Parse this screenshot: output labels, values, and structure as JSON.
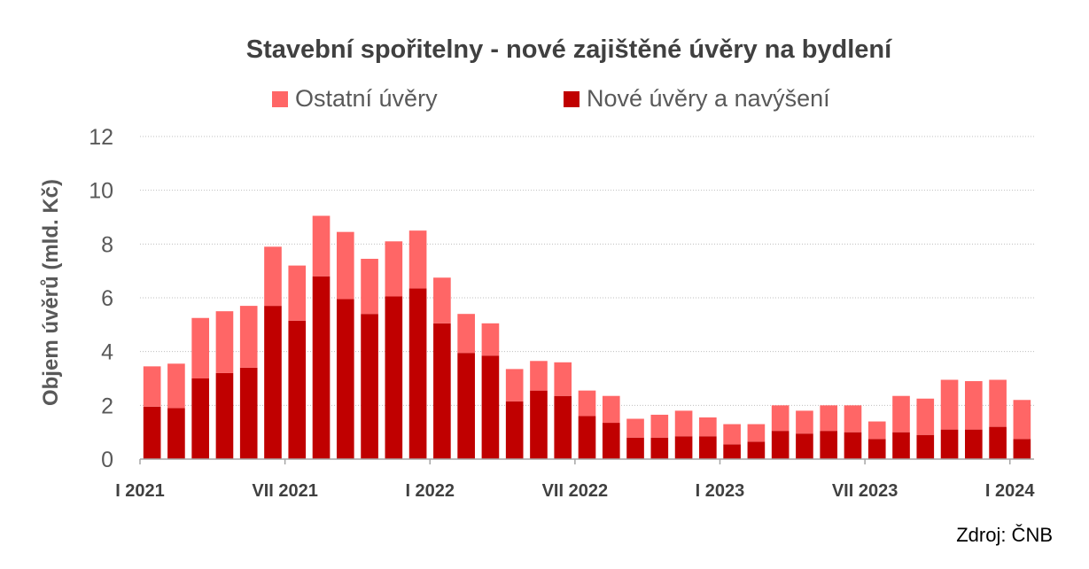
{
  "chart_data": {
    "type": "bar",
    "stacked": true,
    "title": "Stavební spořitelny - nové zajištěné úvěry na bydlení",
    "ylabel": "Objem úvěrů (mld. Kč)",
    "xlabel": "",
    "ylim": [
      0,
      12
    ],
    "yticks": [
      "0",
      "2",
      "4",
      "6",
      "8",
      "10",
      "12"
    ],
    "grid": true,
    "legend_position": "top",
    "x_tick_labels": [
      {
        "label": "I 2021",
        "index": 0
      },
      {
        "label": "VII 2021",
        "index": 6
      },
      {
        "label": "I 2022",
        "index": 12
      },
      {
        "label": "VII 2022",
        "index": 18
      },
      {
        "label": "I 2023",
        "index": 24
      },
      {
        "label": "VII 2023",
        "index": 30
      },
      {
        "label": "I 2024",
        "index": 36
      }
    ],
    "categories": [
      "2021-01",
      "2021-02",
      "2021-03",
      "2021-04",
      "2021-05",
      "2021-06",
      "2021-07",
      "2021-08",
      "2021-09",
      "2021-10",
      "2021-11",
      "2021-12",
      "2022-01",
      "2022-02",
      "2022-03",
      "2022-04",
      "2022-05",
      "2022-06",
      "2022-07",
      "2022-08",
      "2022-09",
      "2022-10",
      "2022-11",
      "2022-12",
      "2023-01",
      "2023-02",
      "2023-03",
      "2023-04",
      "2023-05",
      "2023-06",
      "2023-07",
      "2023-08",
      "2023-09",
      "2023-10",
      "2023-11",
      "2023-12",
      "2024-01"
    ],
    "series": [
      {
        "name": "Nové úvěry a navýšení",
        "color": "#C00000",
        "values": [
          1.95,
          1.9,
          3.0,
          3.2,
          3.4,
          5.7,
          5.15,
          6.8,
          5.95,
          5.4,
          6.05,
          6.35,
          5.05,
          3.95,
          3.85,
          2.15,
          2.55,
          2.35,
          1.6,
          1.35,
          0.8,
          0.8,
          0.85,
          0.85,
          0.55,
          0.65,
          1.05,
          0.95,
          1.05,
          1.0,
          0.75,
          1.0,
          0.9,
          1.1,
          1.1,
          1.2,
          0.75
        ]
      },
      {
        "name": "Ostatní úvěry",
        "color": "#FF6666",
        "values": [
          1.5,
          1.65,
          2.25,
          2.3,
          2.3,
          2.2,
          2.05,
          2.25,
          2.5,
          2.05,
          2.05,
          2.15,
          1.7,
          1.45,
          1.2,
          1.2,
          1.1,
          1.25,
          0.95,
          1.0,
          0.7,
          0.85,
          0.95,
          0.7,
          0.75,
          0.65,
          0.95,
          0.85,
          0.95,
          1.0,
          0.65,
          1.35,
          1.35,
          1.85,
          1.8,
          1.75,
          1.45
        ]
      }
    ]
  },
  "legend": [
    {
      "label": "Ostatní úvěry",
      "color": "#FF6666"
    },
    {
      "label": "Nové úvěry a navýšení",
      "color": "#C00000"
    }
  ],
  "source": "Zdroj: ČNB"
}
